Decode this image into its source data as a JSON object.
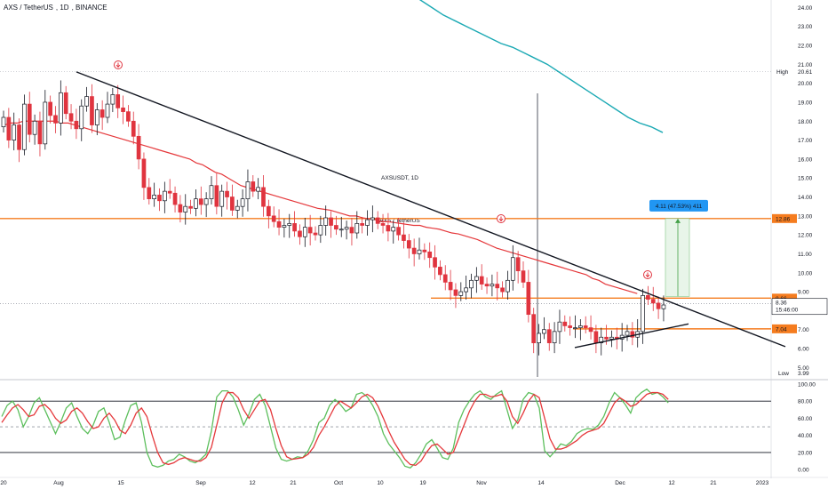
{
  "header": {
    "symbol": "AXS / TetherUS",
    "interval": "1D",
    "exchange": "BINANCE"
  },
  "watermark": {
    "main": "AXSUSDT, 1D",
    "sub": "AXS / TetherUS"
  },
  "colors": {
    "up": "#ffffff",
    "down": "#e0343f",
    "ma_red": "#e5383b",
    "ma_teal": "#1ba9b4",
    "level": "#f57c1f",
    "trend": "#131722",
    "proj": "#2196f3",
    "proj_fill": "#e8f5e9",
    "stoch_k": "#5dbf5d",
    "stoch_d": "#e5383b"
  },
  "chart_data": [
    {
      "type": "candlestick",
      "title": "AXSUSDT, 1D",
      "ylim": [
        4.5,
        24.3
      ],
      "y_ticks": [
        5,
        6,
        7,
        8,
        9,
        10,
        11,
        12,
        13,
        14,
        15,
        16,
        17,
        18,
        19,
        20,
        21,
        22,
        23,
        24
      ],
      "y_tick_labels": [
        "5.00",
        "6.00",
        "7.00",
        "8.00",
        "9.00",
        "10.00",
        "11.00",
        "12.00",
        "13.00",
        "14.00",
        "15.00",
        "16.00",
        "17.00",
        "18.00",
        "19.00",
        "20.00",
        "21.00",
        "22.00",
        "23.00",
        "24.00"
      ],
      "x_tick_labels": [
        "20",
        "Aug",
        "15",
        "Sep",
        "12",
        "21",
        "Oct",
        "10",
        "19",
        "Nov",
        "14",
        "Dec",
        "12",
        "21",
        "2023"
      ],
      "close": [
        18.2,
        17.0,
        17.8,
        16.5,
        18.9,
        17.3,
        18.0,
        16.8,
        19.0,
        18.3,
        17.9,
        19.5,
        18.4,
        18.0,
        17.6,
        18.8,
        19.3,
        17.8,
        18.6,
        18.2,
        18.9,
        19.4,
        18.7,
        18.5,
        18.0,
        17.2,
        16.0,
        14.5,
        13.9,
        14.1,
        13.8,
        14.3,
        14.2,
        13.6,
        13.2,
        13.5,
        13.4,
        13.9,
        13.6,
        13.9,
        14.6,
        13.5,
        14.3,
        14.0,
        13.3,
        13.5,
        13.9,
        14.8,
        14.3,
        14.5,
        13.5,
        13.0,
        12.7,
        12.4,
        12.5,
        12.6,
        12.2,
        11.9,
        12.4,
        12.1,
        12.0,
        12.5,
        12.9,
        12.5,
        12.3,
        12.3,
        12.4,
        12.1,
        12.6,
        12.5,
        12.8,
        12.9,
        12.6,
        12.5,
        12.2,
        12.4,
        12.0,
        11.7,
        11.3,
        11.0,
        11.2,
        11.1,
        10.8,
        10.3,
        9.9,
        9.5,
        9.1,
        8.8,
        9.0,
        9.2,
        9.6,
        9.8,
        9.4,
        9.3,
        9.4,
        9.2,
        9.0,
        9.6,
        10.8,
        10.1,
        9.5,
        7.8,
        6.3,
        6.8,
        7.0,
        6.3,
        6.9,
        7.4,
        7.2,
        7.1,
        7.1,
        7.2,
        7.1,
        6.9,
        6.3,
        6.6,
        6.5,
        6.6,
        6.5,
        6.7,
        6.9,
        6.6,
        6.9,
        8.8,
        8.6,
        8.4,
        8.1,
        8.3
      ],
      "ma_red": [
        17.8,
        17.9,
        17.9,
        18.0,
        18.0,
        18.0,
        18.0,
        18.0,
        18.0,
        17.9,
        17.9,
        17.8,
        17.7,
        17.6,
        17.5,
        17.4,
        17.3,
        17.2,
        17.1,
        17.0,
        16.9,
        16.8,
        16.7,
        16.6,
        16.5,
        16.4,
        16.3,
        16.2,
        16.1,
        16.0,
        15.8,
        15.7,
        15.5,
        15.3,
        15.2,
        15.0,
        14.8,
        14.6,
        14.5,
        14.4,
        14.3,
        14.2,
        14.1,
        14.0,
        13.9,
        13.8,
        13.7,
        13.6,
        13.5,
        13.4,
        13.35,
        13.3,
        13.2,
        13.1,
        13.0,
        13.0,
        12.9,
        12.85,
        12.8,
        12.7,
        12.7,
        12.65,
        12.6,
        12.55,
        12.5,
        12.5,
        12.4,
        12.35,
        12.3,
        12.2,
        12.1,
        12.05,
        11.95,
        11.85,
        11.75,
        11.6,
        11.45,
        11.3,
        11.2,
        11.1,
        11.0,
        10.9,
        10.8,
        10.7,
        10.6,
        10.5,
        10.4,
        10.3,
        10.2,
        10.1,
        10.0,
        9.9,
        9.7,
        9.6,
        9.4,
        9.3,
        9.2,
        9.1,
        9.0,
        8.9
      ],
      "ma_teal": [
        24.8,
        24.4,
        24.0,
        23.6,
        23.3,
        23.0,
        22.7,
        22.4,
        22.1,
        21.9,
        21.6,
        21.3,
        21.0,
        20.6,
        20.2,
        19.8,
        19.4,
        19.0,
        18.6,
        18.2,
        17.9,
        17.7,
        17.4
      ],
      "trendline_upper": [
        [
          20.6,
          1
        ],
        [
          6.1,
          130
        ]
      ],
      "trendline_lower": [
        [
          6.05,
          94
        ],
        [
          7.3,
          112
        ]
      ],
      "horizontal_levels": [
        {
          "value": 12.86,
          "label": "12.86"
        },
        {
          "value": 8.66,
          "label": "8.66"
        },
        {
          "value": 7.04,
          "label": "7.04"
        }
      ],
      "projection": {
        "from": 8.75,
        "to": 12.86,
        "label": "4.11 (47.53%) 411"
      },
      "high": {
        "label": "High",
        "value": "20.61"
      },
      "low": {
        "label": "Low",
        "value": "3.99"
      },
      "current": {
        "value": "8.36",
        "timer": "15:46:00"
      }
    },
    {
      "type": "line",
      "title": "",
      "ylim": [
        -5,
        102
      ],
      "y_ticks": [
        0,
        20,
        40,
        60,
        80,
        100
      ],
      "y_tick_labels": [
        "0.00",
        "20.00",
        "40.00",
        "60.00",
        "80.00",
        "100.00"
      ],
      "bands": [
        80,
        50,
        20
      ],
      "series": [
        {
          "values": [
            62,
            75,
            80,
            70,
            50,
            62,
            78,
            84,
            70,
            56,
            42,
            56,
            72,
            78,
            62,
            48,
            42,
            52,
            68,
            72,
            55,
            35,
            38,
            58,
            75,
            78,
            55,
            20,
            5,
            3,
            5,
            10,
            12,
            18,
            15,
            10,
            8,
            12,
            18,
            45,
            85,
            92,
            92,
            85,
            70,
            52,
            65,
            82,
            88,
            75,
            50,
            25,
            12,
            10,
            12,
            15,
            14,
            22,
            35,
            55,
            60,
            75,
            82,
            76,
            68,
            72,
            88,
            90,
            85,
            75,
            62,
            42,
            30,
            22,
            14,
            4,
            2,
            8,
            18,
            30,
            35,
            25,
            14,
            12,
            25,
            55,
            70,
            80,
            88,
            92,
            85,
            82,
            88,
            92,
            70,
            48,
            58,
            82,
            90,
            88,
            72,
            22,
            15,
            22,
            30,
            28,
            33,
            42,
            46,
            48,
            47,
            52,
            62,
            78,
            90,
            84,
            76,
            66,
            84,
            90,
            94,
            88,
            90,
            85,
            78
          ]
        },
        {
          "values": [
            55,
            64,
            72,
            76,
            70,
            62,
            64,
            74,
            76,
            70,
            60,
            54,
            58,
            68,
            72,
            66,
            56,
            48,
            50,
            60,
            66,
            58,
            46,
            42,
            52,
            66,
            72,
            62,
            40,
            20,
            8,
            6,
            8,
            12,
            14,
            12,
            10,
            10,
            14,
            26,
            52,
            78,
            90,
            90,
            84,
            70,
            60,
            70,
            80,
            82,
            70,
            48,
            28,
            15,
            12,
            13,
            14,
            18,
            26,
            40,
            50,
            62,
            74,
            80,
            76,
            72,
            78,
            85,
            88,
            84,
            74,
            60,
            45,
            32,
            22,
            12,
            6,
            5,
            10,
            20,
            28,
            30,
            24,
            18,
            20,
            36,
            52,
            68,
            80,
            88,
            88,
            85,
            86,
            88,
            80,
            62,
            54,
            66,
            80,
            88,
            84,
            60,
            36,
            24,
            24,
            26,
            30,
            34,
            40,
            44,
            46,
            48,
            54,
            66,
            78,
            84,
            80,
            74,
            76,
            82,
            88,
            90,
            90,
            88,
            82
          ]
        }
      ]
    }
  ]
}
